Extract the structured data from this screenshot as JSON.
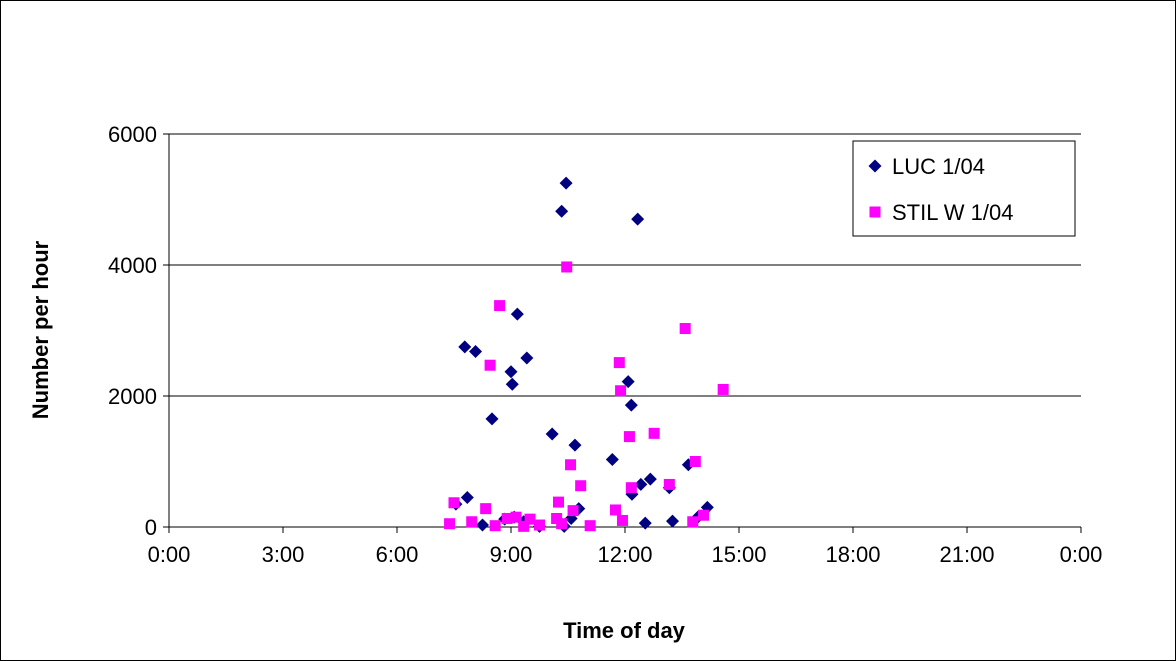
{
  "chart_data": {
    "type": "scatter",
    "title": "",
    "xlabel": "Time of day",
    "ylabel": "Number per hour",
    "xlim": [
      "0:00",
      "24:00"
    ],
    "ylim": [
      0,
      6000
    ],
    "x_ticks": [
      "0:00",
      "3:00",
      "6:00",
      "9:00",
      "12:00",
      "15:00",
      "18:00",
      "21:00",
      "0:00"
    ],
    "y_ticks": [
      "0",
      "2000",
      "4000",
      "6000"
    ],
    "grid": "horizontal",
    "legend_position": "top-right",
    "series": [
      {
        "name": "LUC 1/04",
        "marker": "diamond",
        "color": "#000080",
        "points": [
          {
            "x": "7:33",
            "y": 350
          },
          {
            "x": "7:47",
            "y": 2750
          },
          {
            "x": "7:51",
            "y": 450
          },
          {
            "x": "8:04",
            "y": 2680
          },
          {
            "x": "8:15",
            "y": 30
          },
          {
            "x": "8:30",
            "y": 1650
          },
          {
            "x": "8:50",
            "y": 120
          },
          {
            "x": "9:00",
            "y": 2370
          },
          {
            "x": "9:02",
            "y": 2180
          },
          {
            "x": "9:05",
            "y": 150
          },
          {
            "x": "9:10",
            "y": 3250
          },
          {
            "x": "9:20",
            "y": 80
          },
          {
            "x": "9:25",
            "y": 2580
          },
          {
            "x": "9:45",
            "y": 10
          },
          {
            "x": "10:05",
            "y": 1420
          },
          {
            "x": "10:20",
            "y": 4820
          },
          {
            "x": "10:24",
            "y": 10
          },
          {
            "x": "10:27",
            "y": 5250
          },
          {
            "x": "10:35",
            "y": 130
          },
          {
            "x": "10:41",
            "y": 1250
          },
          {
            "x": "10:47",
            "y": 280
          },
          {
            "x": "11:40",
            "y": 1030
          },
          {
            "x": "12:05",
            "y": 2220
          },
          {
            "x": "12:10",
            "y": 1860
          },
          {
            "x": "12:11",
            "y": 500
          },
          {
            "x": "12:20",
            "y": 4700
          },
          {
            "x": "12:25",
            "y": 650
          },
          {
            "x": "12:32",
            "y": 60
          },
          {
            "x": "12:40",
            "y": 730
          },
          {
            "x": "13:10",
            "y": 600
          },
          {
            "x": "13:15",
            "y": 90
          },
          {
            "x": "13:40",
            "y": 950
          },
          {
            "x": "13:55",
            "y": 150
          },
          {
            "x": "14:10",
            "y": 300
          }
        ]
      },
      {
        "name": "STIL W 1/04",
        "marker": "square",
        "color": "#FF00FF",
        "points": [
          {
            "x": "7:23",
            "y": 50
          },
          {
            "x": "7:30",
            "y": 370
          },
          {
            "x": "7:58",
            "y": 80
          },
          {
            "x": "8:20",
            "y": 280
          },
          {
            "x": "8:27",
            "y": 2470
          },
          {
            "x": "8:35",
            "y": 20
          },
          {
            "x": "8:42",
            "y": 3380
          },
          {
            "x": "8:54",
            "y": 130
          },
          {
            "x": "9:08",
            "y": 150
          },
          {
            "x": "9:20",
            "y": 10
          },
          {
            "x": "9:30",
            "y": 120
          },
          {
            "x": "9:45",
            "y": 30
          },
          {
            "x": "10:12",
            "y": 130
          },
          {
            "x": "10:15",
            "y": 380
          },
          {
            "x": "10:20",
            "y": 50
          },
          {
            "x": "10:28",
            "y": 3970
          },
          {
            "x": "10:34",
            "y": 950
          },
          {
            "x": "10:38",
            "y": 250
          },
          {
            "x": "10:50",
            "y": 630
          },
          {
            "x": "11:05",
            "y": 20
          },
          {
            "x": "11:45",
            "y": 260
          },
          {
            "x": "11:51",
            "y": 2510
          },
          {
            "x": "11:53",
            "y": 2080
          },
          {
            "x": "11:56",
            "y": 100
          },
          {
            "x": "12:07",
            "y": 1380
          },
          {
            "x": "12:10",
            "y": 600
          },
          {
            "x": "12:46",
            "y": 1430
          },
          {
            "x": "13:10",
            "y": 650
          },
          {
            "x": "13:35",
            "y": 3030
          },
          {
            "x": "13:47",
            "y": 80
          },
          {
            "x": "13:51",
            "y": 1000
          },
          {
            "x": "14:04",
            "y": 180
          },
          {
            "x": "14:35",
            "y": 2100
          }
        ]
      }
    ]
  }
}
